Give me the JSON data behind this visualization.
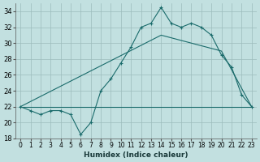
{
  "xlabel": "Humidex (Indice chaleur)",
  "ylabel": "",
  "bg_color": "#c2e0e0",
  "grid_color": "#9cbcbc",
  "line_color": "#1a6b6b",
  "xlim": [
    -0.5,
    23.5
  ],
  "ylim": [
    18,
    35
  ],
  "xticks": [
    0,
    1,
    2,
    3,
    4,
    5,
    6,
    7,
    8,
    9,
    10,
    11,
    12,
    13,
    14,
    15,
    16,
    17,
    18,
    19,
    20,
    21,
    22,
    23
  ],
  "yticks": [
    18,
    20,
    22,
    24,
    26,
    28,
    30,
    32,
    34
  ],
  "line1_x": [
    0,
    1,
    2,
    3,
    4,
    5,
    6,
    7,
    8,
    9,
    10,
    11,
    12,
    13,
    14,
    15,
    16,
    17,
    18,
    19,
    20,
    21,
    22,
    23
  ],
  "line1_y": [
    22,
    21.5,
    21,
    21.5,
    21.5,
    21,
    18.5,
    20,
    24,
    25.5,
    27.5,
    29.5,
    32,
    32.5,
    34.5,
    32.5,
    32,
    32.5,
    32,
    31,
    28.5,
    27,
    23.5,
    22
  ],
  "line2_x": [
    0,
    14,
    20,
    23
  ],
  "line2_y": [
    22,
    31,
    29,
    22
  ],
  "line3_x": [
    0,
    19,
    23
  ],
  "line3_y": [
    22,
    22,
    22
  ]
}
